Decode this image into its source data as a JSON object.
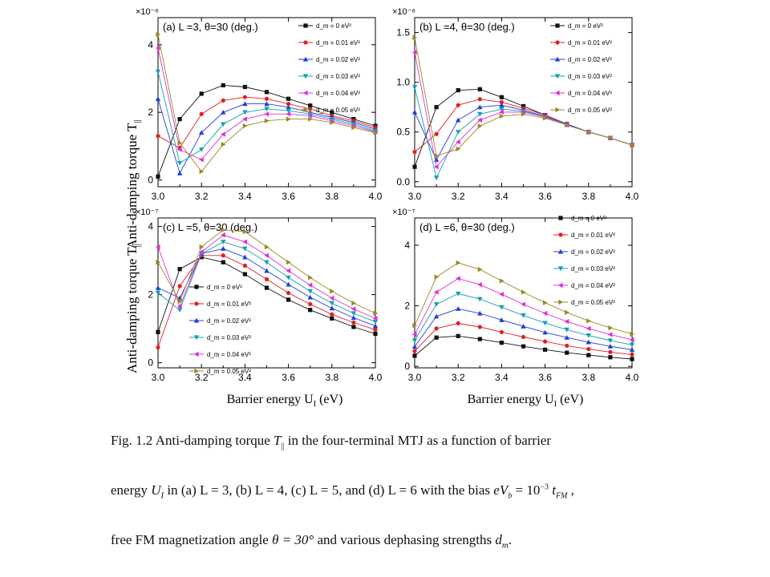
{
  "figure": {
    "ylabel": "Anti-damping torque T",
    "ylabel_sub": "||",
    "xlabel": "Barrier energy U",
    "xlabel_sub": "I",
    "xlabel_unit": " (eV)"
  },
  "legend_entries": [
    "d_m = 0 eV²",
    "d_m = 0.01 eV²",
    "d_m = 0.02 eV²",
    "d_m = 0.03 eV²",
    "d_m = 0.04 eV²",
    "d_m = 0.05 eV²"
  ],
  "colors": [
    "#111111",
    "#e02020",
    "#1f3fd8",
    "#14a0b4",
    "#e030d8",
    "#9a8a20"
  ],
  "markers": [
    "square",
    "circle",
    "triangle-up",
    "triangle-down",
    "triangle-left",
    "triangle-right"
  ],
  "chart_data": [
    {
      "type": "line",
      "title": "(a) L =3, θ=30 (deg.)",
      "multiplier": "×10⁻⁶",
      "xlim": [
        3.0,
        4.0
      ],
      "ylim": [
        -0.2,
        4.8
      ],
      "xticks": [
        "3.0",
        "3.2",
        "3.4",
        "3.6",
        "3.8",
        "4.0"
      ],
      "yticks": [
        {
          "v": 0,
          "t": "0"
        },
        {
          "v": 2,
          "t": "2"
        },
        {
          "v": 4,
          "t": "4"
        }
      ],
      "legend": "top-right",
      "x": [
        3.0,
        3.1,
        3.2,
        3.3,
        3.4,
        3.5,
        3.6,
        3.7,
        3.8,
        3.9,
        4.0
      ],
      "series": [
        {
          "name": "d_m = 0 eV²",
          "values": [
            0.1,
            1.8,
            2.55,
            2.8,
            2.75,
            2.6,
            2.4,
            2.2,
            2.0,
            1.8,
            1.6
          ]
        },
        {
          "name": "d_m = 0.01 eV²",
          "values": [
            1.3,
            0.95,
            1.95,
            2.35,
            2.45,
            2.4,
            2.25,
            2.1,
            1.9,
            1.75,
            1.55
          ]
        },
        {
          "name": "d_m = 0.02 eV²",
          "values": [
            2.4,
            0.2,
            1.4,
            2.0,
            2.25,
            2.25,
            2.15,
            2.0,
            1.85,
            1.7,
            1.5
          ]
        },
        {
          "name": "d_m = 0.03 eV²",
          "values": [
            3.2,
            0.5,
            0.9,
            1.65,
            2.0,
            2.1,
            2.05,
            1.95,
            1.8,
            1.65,
            1.45
          ]
        },
        {
          "name": "d_m = 0.04 eV²",
          "values": [
            3.9,
            0.9,
            0.6,
            1.35,
            1.8,
            1.95,
            1.95,
            1.9,
            1.75,
            1.6,
            1.42
          ]
        },
        {
          "name": "d_m = 0.05 eV²",
          "values": [
            4.3,
            1.1,
            0.25,
            1.05,
            1.6,
            1.75,
            1.8,
            1.8,
            1.7,
            1.55,
            1.4
          ]
        }
      ]
    },
    {
      "type": "line",
      "title": "(b) L =4, θ=30 (deg.)",
      "multiplier": "×10⁻⁶",
      "xlim": [
        3.0,
        4.0
      ],
      "ylim": [
        -0.05,
        1.65
      ],
      "xticks": [
        "3.0",
        "3.2",
        "3.4",
        "3.6",
        "3.8",
        "4.0"
      ],
      "yticks": [
        {
          "v": 0,
          "t": "0.0"
        },
        {
          "v": 0.5,
          "t": "0.5"
        },
        {
          "v": 1.0,
          "t": "1.0"
        },
        {
          "v": 1.5,
          "t": "1.5"
        }
      ],
      "legend": "top-right",
      "x": [
        3.0,
        3.1,
        3.2,
        3.3,
        3.4,
        3.5,
        3.6,
        3.7,
        3.8,
        3.9,
        4.0
      ],
      "series": [
        {
          "name": "d_m = 0 eV²",
          "values": [
            0.15,
            0.75,
            0.92,
            0.93,
            0.85,
            0.76,
            0.67,
            0.58,
            0.5,
            0.44,
            0.37
          ]
        },
        {
          "name": "d_m = 0.01 eV²",
          "values": [
            0.3,
            0.48,
            0.77,
            0.83,
            0.8,
            0.74,
            0.67,
            0.58,
            0.5,
            0.44,
            0.37
          ]
        },
        {
          "name": "d_m = 0.02 eV²",
          "values": [
            0.7,
            0.22,
            0.62,
            0.75,
            0.77,
            0.72,
            0.66,
            0.58,
            0.5,
            0.44,
            0.37
          ]
        },
        {
          "name": "d_m = 0.03 eV²",
          "values": [
            0.95,
            0.04,
            0.5,
            0.68,
            0.73,
            0.71,
            0.65,
            0.57,
            0.5,
            0.44,
            0.37
          ]
        },
        {
          "name": "d_m = 0.04 eV²",
          "values": [
            1.3,
            0.15,
            0.4,
            0.62,
            0.7,
            0.7,
            0.65,
            0.57,
            0.5,
            0.44,
            0.37
          ]
        },
        {
          "name": "d_m = 0.05 eV²",
          "values": [
            1.45,
            0.26,
            0.33,
            0.56,
            0.66,
            0.68,
            0.64,
            0.57,
            0.5,
            0.44,
            0.37
          ]
        }
      ]
    },
    {
      "type": "line",
      "title": "(c) L =5, θ=30 (deg.)",
      "multiplier": "×10⁻⁷",
      "xlim": [
        3.0,
        4.0
      ],
      "ylim": [
        -0.15,
        4.25
      ],
      "xticks": [
        "3.0",
        "3.2",
        "3.4",
        "3.6",
        "3.8",
        "4.0"
      ],
      "yticks": [
        {
          "v": 0,
          "t": "0"
        },
        {
          "v": 2,
          "t": "2"
        },
        {
          "v": 4,
          "t": "4"
        }
      ],
      "legend": "bottom-left",
      "x": [
        3.0,
        3.1,
        3.2,
        3.3,
        3.4,
        3.5,
        3.6,
        3.7,
        3.8,
        3.9,
        4.0
      ],
      "series": [
        {
          "name": "d_m = 0 eV²",
          "values": [
            0.9,
            2.75,
            3.1,
            2.95,
            2.6,
            2.2,
            1.85,
            1.55,
            1.3,
            1.05,
            0.85
          ]
        },
        {
          "name": "d_m = 0.01 eV²",
          "values": [
            0.45,
            2.25,
            3.15,
            3.15,
            2.85,
            2.45,
            2.05,
            1.72,
            1.42,
            1.18,
            0.97
          ]
        },
        {
          "name": "d_m = 0.02 eV²",
          "values": [
            2.2,
            1.9,
            3.2,
            3.35,
            3.1,
            2.7,
            2.3,
            1.92,
            1.6,
            1.32,
            1.08
          ]
        },
        {
          "name": "d_m = 0.03 eV²",
          "values": [
            2.05,
            1.55,
            3.2,
            3.55,
            3.35,
            2.95,
            2.5,
            2.1,
            1.75,
            1.45,
            1.2
          ]
        },
        {
          "name": "d_m = 0.04 eV²",
          "values": [
            3.4,
            1.65,
            3.25,
            3.75,
            3.55,
            3.15,
            2.7,
            2.28,
            1.9,
            1.58,
            1.3
          ]
        },
        {
          "name": "d_m = 0.05 eV²",
          "values": [
            2.95,
            1.8,
            3.4,
            3.9,
            3.85,
            3.4,
            2.95,
            2.5,
            2.1,
            1.75,
            1.45
          ]
        }
      ]
    },
    {
      "type": "line",
      "title": "(d) L =6, θ=30 (deg.)",
      "multiplier": "×10⁻⁷",
      "xlim": [
        3.0,
        4.0
      ],
      "ylim": [
        -0.05,
        4.9
      ],
      "xticks": [
        "3.0",
        "3.2",
        "3.4",
        "3.6",
        "3.8",
        "4.0"
      ],
      "yticks": [
        {
          "v": 0,
          "t": "0"
        },
        {
          "v": 2,
          "t": "2"
        },
        {
          "v": 4,
          "t": "4"
        }
      ],
      "legend": "top-right",
      "x": [
        3.0,
        3.1,
        3.2,
        3.3,
        3.4,
        3.5,
        3.6,
        3.7,
        3.8,
        3.9,
        4.0
      ],
      "series": [
        {
          "name": "d_m = 0 eV²",
          "values": [
            0.35,
            0.95,
            1.0,
            0.9,
            0.78,
            0.66,
            0.55,
            0.45,
            0.37,
            0.3,
            0.24
          ]
        },
        {
          "name": "d_m = 0.01 eV²",
          "values": [
            0.5,
            1.25,
            1.42,
            1.3,
            1.13,
            0.97,
            0.82,
            0.68,
            0.57,
            0.47,
            0.39
          ]
        },
        {
          "name": "d_m = 0.02 eV²",
          "values": [
            0.65,
            1.65,
            1.9,
            1.75,
            1.53,
            1.32,
            1.12,
            0.95,
            0.8,
            0.66,
            0.55
          ]
        },
        {
          "name": "d_m = 0.03 eV²",
          "values": [
            0.85,
            2.05,
            2.4,
            2.22,
            1.95,
            1.68,
            1.43,
            1.21,
            1.02,
            0.85,
            0.71
          ]
        },
        {
          "name": "d_m = 0.04 eV²",
          "values": [
            1.05,
            2.45,
            2.9,
            2.7,
            2.38,
            2.05,
            1.75,
            1.48,
            1.25,
            1.05,
            0.88
          ]
        },
        {
          "name": "d_m = 0.05 eV²",
          "values": [
            1.35,
            2.95,
            3.42,
            3.2,
            2.82,
            2.45,
            2.1,
            1.78,
            1.5,
            1.27,
            1.07
          ]
        }
      ]
    }
  ],
  "caption": {
    "line1_a": "Fig. 1.2 Anti-damping torque ",
    "line1_sym": "T",
    "line1_sub": "||",
    "line1_b": " in the four-terminal MTJ as a function of barrier",
    "line2_a": "energy ",
    "line2_sym": "U",
    "line2_sub": "I",
    "line2_b": " in (a) L = 3, (b) L = 4, (c) L = 5, and (d) L = 6 with the bias ",
    "line2_eq": "eV",
    "line2_eq_sub": "b",
    "line2_eq_mid": " = 10",
    "line2_eq_sup": "−3",
    "line2_eq_t": " t",
    "line2_eq_tsub": "FM",
    "line2_end": " ,",
    "line3_a": "free FM magnetization angle ",
    "line3_eq": "θ = 30°",
    "line3_b": " and various dephasing strengths ",
    "line3_sym": "d",
    "line3_sub": "m",
    "line3_end": "."
  }
}
